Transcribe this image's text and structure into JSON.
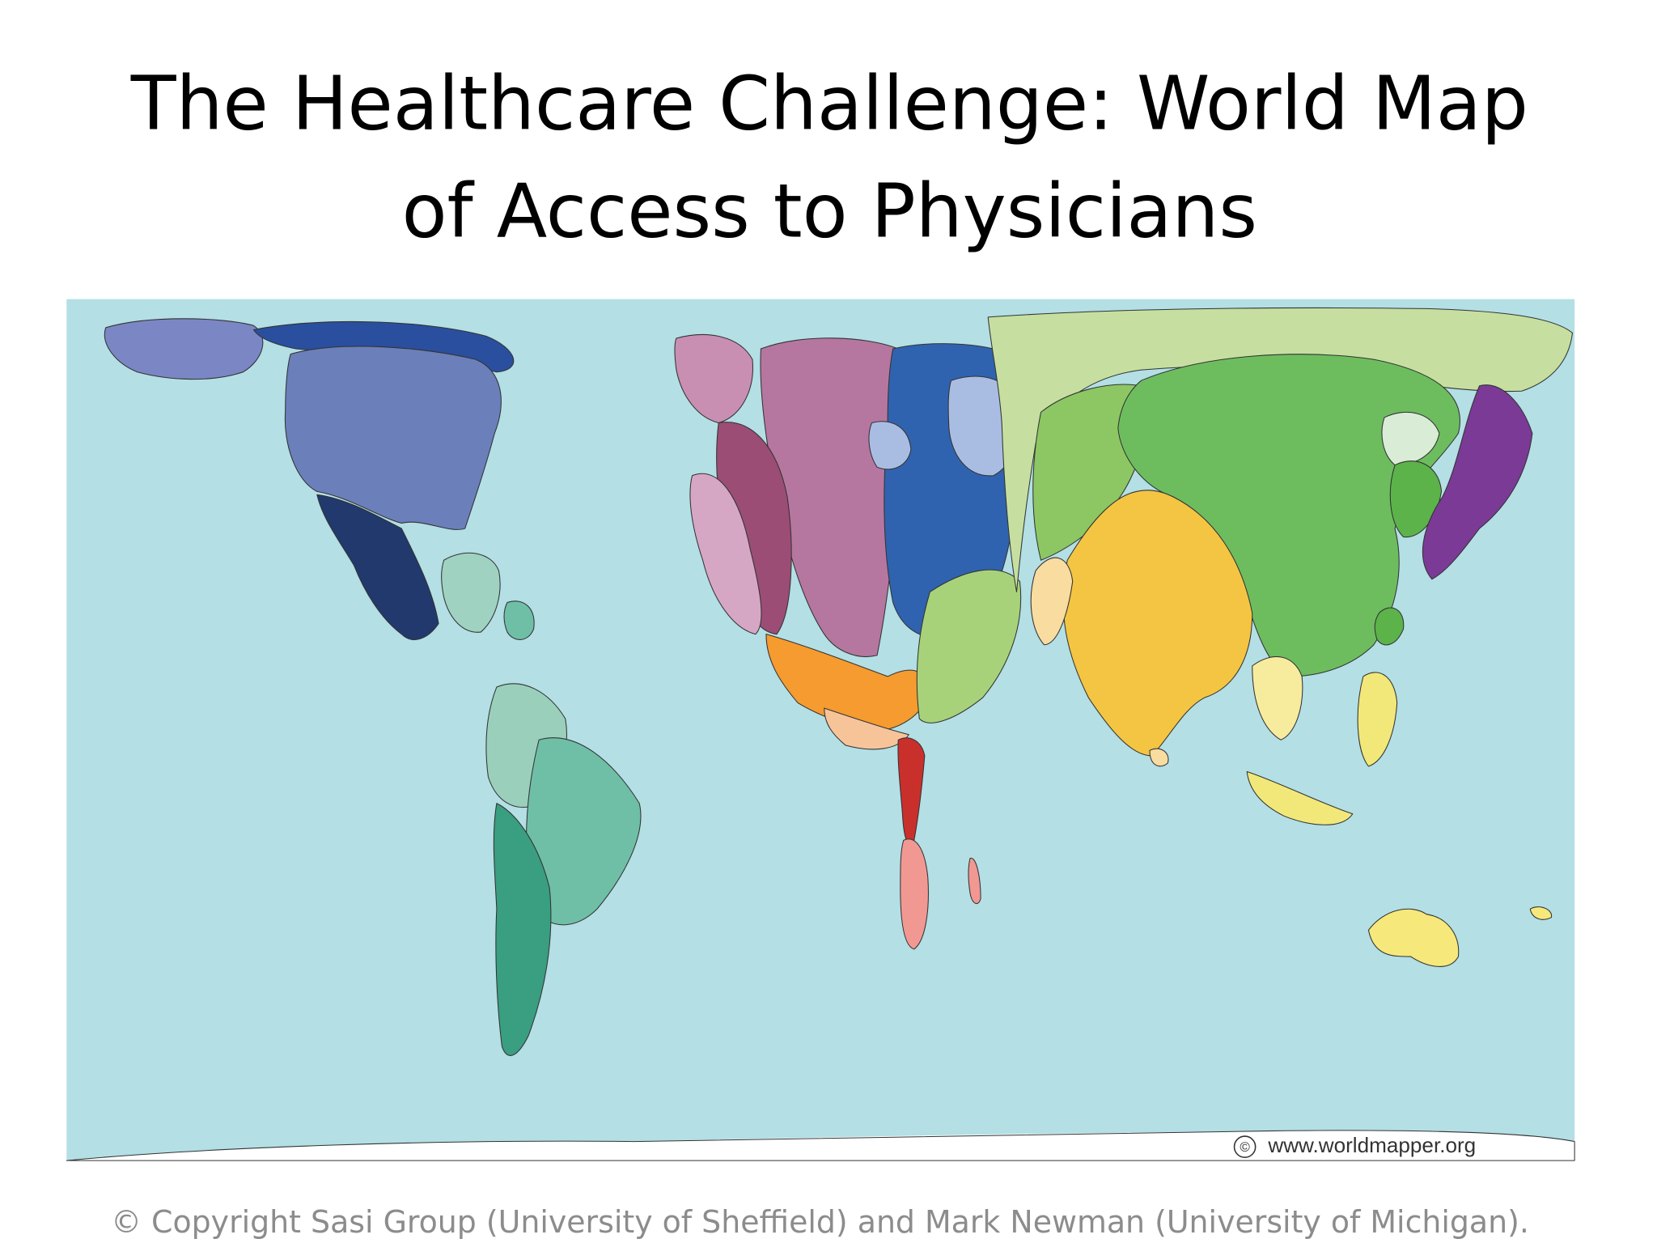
{
  "title": {
    "line1": "The Healthcare Challenge: World Map",
    "line2": "of Access to Physicians"
  },
  "map": {
    "watermark_symbol": "©",
    "watermark": "www.worldmapper.org"
  },
  "footer": "© Copyright Sasi Group (University of Sheffield) and Mark Newman (University of Michigan)."
}
